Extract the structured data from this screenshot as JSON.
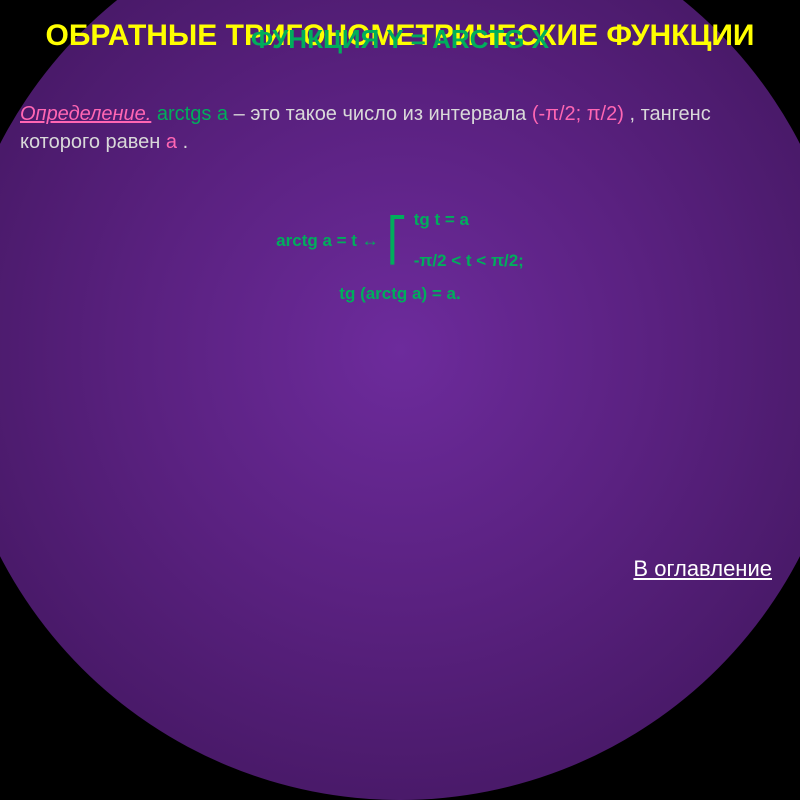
{
  "title": {
    "main": "ОБРАТНЫЕ ТРИГОНОМЕТРИЧЕСКИЕ ФУНКЦИИ",
    "sub": "ФУНКЦИЯ Y = ARCTG X"
  },
  "definition": {
    "label": "Определение.",
    "term": "arctgs a",
    "text1": " – это такое число из интервала ",
    "interval": "(-π/2; π/2)",
    "text2": ", тангенс которого равен ",
    "a": "а",
    "period": "."
  },
  "formula": {
    "left": "arctg a = t ↔",
    "top": "tg t = a",
    "bottom": "-π/2 < t < π/2;",
    "identity": "tg (arctg a) = a."
  },
  "toc": "В оглавление",
  "colors": {
    "yellow": "#ffff00",
    "green": "#00ae5c",
    "pink": "#ff66b3",
    "gray": "#d9d9d9",
    "white": "#ffffff",
    "bg_purple": "#5a2180"
  }
}
